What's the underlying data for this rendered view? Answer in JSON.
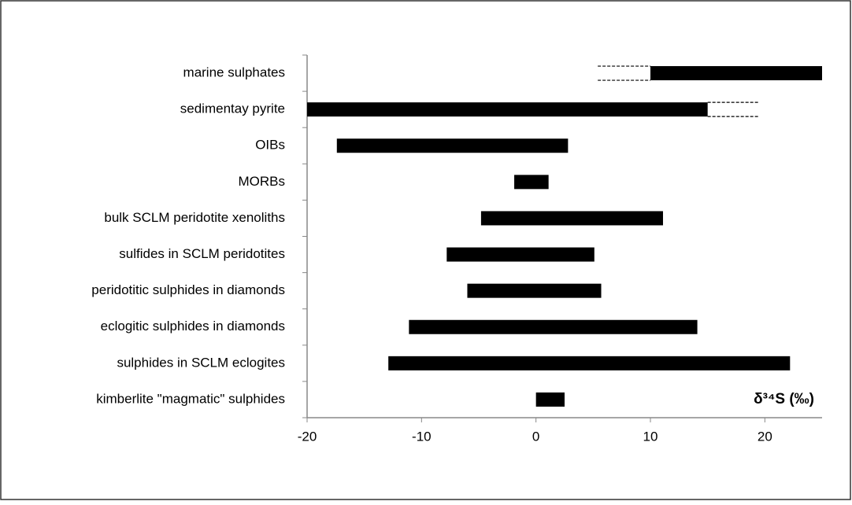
{
  "chart_data": {
    "type": "range_bar",
    "categories": [
      "marine sulphates",
      "sedimentay pyrite",
      "OIBs",
      "MORBs",
      "bulk SCLM peridotite xenoliths",
      "sulfides in SCLM peridotites",
      "peridotitic sulphides in diamonds",
      "eclogitic sulphides in diamonds",
      "sulphides in SCLM eclogites",
      "kimberlite \"magmatic\" sulphides"
    ],
    "starts": [
      10,
      -20,
      -17.4,
      -1.9,
      -4.8,
      -7.8,
      -6,
      -11.1,
      -12.9,
      0
    ],
    "ends": [
      25,
      15,
      2.8,
      1.1,
      11.1,
      5.1,
      5.7,
      14.1,
      22.2,
      2.5
    ],
    "dashed_starts": [
      5.4,
      15,
      null,
      null,
      null,
      null,
      null,
      null,
      null,
      null
    ],
    "dashed_ends": [
      10,
      19.5,
      null,
      null,
      null,
      null,
      null,
      null,
      null,
      null
    ],
    "color": "#000000",
    "xlim": [
      -20,
      25
    ],
    "xticks": [
      -20,
      -10,
      0,
      10,
      20
    ],
    "annotation": "δ³⁴S (‰)"
  }
}
